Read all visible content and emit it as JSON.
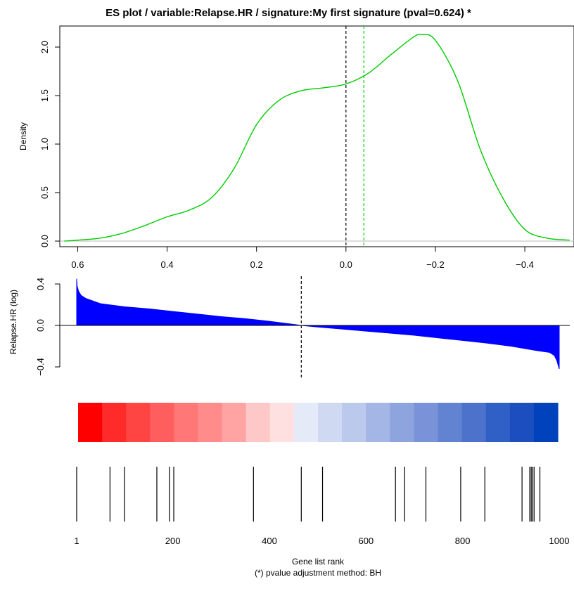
{
  "chart_data": [
    {
      "type": "area",
      "title": "ES  plot /  variable:Relapse.HR / signature:My first signature (pval=0.624) *",
      "ylabel": "Density",
      "xlabel": "",
      "x_reversed": true,
      "xlim": [
        0.64,
        -0.51
      ],
      "ylim": [
        0,
        2.2
      ],
      "x_ticks": [
        "0.6",
        "0.4",
        "0.2",
        "0.0",
        "−0.2",
        "−0.4"
      ],
      "x_tick_values": [
        0.6,
        0.4,
        0.2,
        0.0,
        -0.2,
        -0.4
      ],
      "y_ticks": [
        "0.0",
        "0.5",
        "1.0",
        "1.5",
        "2.0"
      ],
      "y_tick_values": [
        0.0,
        0.5,
        1.0,
        1.5,
        2.0
      ],
      "series": [
        {
          "color": "#00cc00",
          "x": [
            0.63,
            0.6,
            0.55,
            0.5,
            0.45,
            0.4,
            0.35,
            0.3,
            0.25,
            0.2,
            0.15,
            0.1,
            0.05,
            0.0,
            -0.05,
            -0.1,
            -0.15,
            -0.17,
            -0.2,
            -0.25,
            -0.3,
            -0.35,
            -0.4,
            -0.45,
            -0.5
          ],
          "y": [
            0.0,
            0.01,
            0.03,
            0.08,
            0.16,
            0.25,
            0.32,
            0.45,
            0.75,
            1.2,
            1.45,
            1.55,
            1.58,
            1.62,
            1.73,
            1.92,
            2.1,
            2.13,
            2.07,
            1.65,
            0.95,
            0.45,
            0.12,
            0.03,
            0.01
          ]
        }
      ],
      "reference_lines": [
        {
          "x": 0.0,
          "color": "#000000",
          "style": "dashed"
        },
        {
          "x": -0.04,
          "color": "#00cc00",
          "style": "dashed"
        }
      ],
      "baseline_color": "#bbbbbb"
    },
    {
      "type": "area",
      "ylabel": "Relapse.HR (log)",
      "xlim": [
        1,
        1000
      ],
      "ylim": [
        -0.45,
        0.45
      ],
      "y_ticks": [
        "−0.4",
        "0.0",
        "0.4"
      ],
      "y_tick_values": [
        -0.4,
        0.0,
        0.4
      ],
      "series": [
        {
          "color": "#0000ff",
          "x": [
            1,
            2,
            5,
            10,
            20,
            50,
            100,
            150,
            200,
            250,
            300,
            350,
            400,
            450,
            466,
            500,
            550,
            600,
            650,
            700,
            750,
            800,
            850,
            900,
            950,
            980,
            990,
            995,
            1000
          ],
          "y": [
            0.45,
            0.38,
            0.33,
            0.29,
            0.26,
            0.21,
            0.18,
            0.16,
            0.135,
            0.11,
            0.085,
            0.065,
            0.04,
            0.01,
            0.0,
            -0.015,
            -0.035,
            -0.055,
            -0.075,
            -0.095,
            -0.12,
            -0.145,
            -0.17,
            -0.2,
            -0.24,
            -0.26,
            -0.29,
            -0.34,
            -0.42
          ]
        }
      ],
      "reference_lines": [
        {
          "x": 466,
          "color": "#000000",
          "style": "dashed"
        }
      ]
    },
    {
      "type": "heatmap",
      "colors": [
        "#ff0000",
        "#ff2a2a",
        "#ff4444",
        "#ff5e5e",
        "#ff7777",
        "#ff8b8b",
        "#ffa3a3",
        "#ffc8c8",
        "#ffe0e0",
        "#e4eaf8",
        "#cfd9f1",
        "#bbc9ec",
        "#a3b6e5",
        "#8ea4de",
        "#7a93d8",
        "#6283d2",
        "#4d72cc",
        "#305fc6",
        "#1c4ec0",
        "#0042bb"
      ]
    },
    {
      "type": "scatter",
      "xlabel": "Gene list rank",
      "note": "(*) pvalue adjustment method: BH",
      "xlim": [
        1,
        1000
      ],
      "x_ticks": [
        "1",
        "200",
        "400",
        "600",
        "800",
        "1000"
      ],
      "x_tick_values": [
        1,
        200,
        400,
        600,
        800,
        1000
      ],
      "hits": [
        1,
        70,
        100,
        167,
        193,
        202,
        367,
        466,
        510,
        661,
        680,
        724,
        796,
        846,
        923,
        939,
        942,
        945,
        948,
        960
      ]
    }
  ]
}
